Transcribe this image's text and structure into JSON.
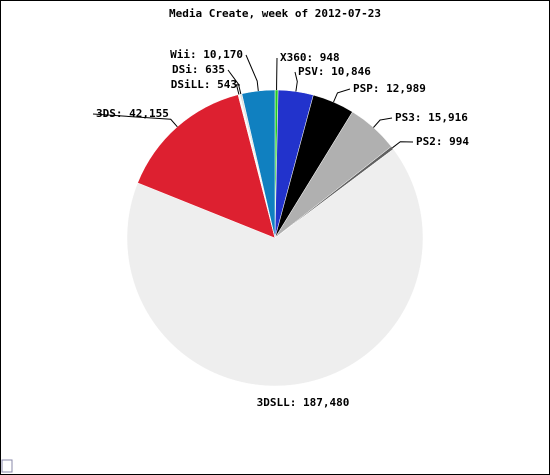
{
  "chart_data": {
    "type": "pie",
    "title": "Media Create, week of 2012-07-23",
    "labels": [
      "X360: 948",
      "PSV: 10,846",
      "PSP: 12,989",
      "PS3: 15,916",
      "PS2: 994",
      "3DSLL: 187,480",
      "3DS: 42,155",
      "DSiLL: 543",
      "DSi: 635",
      "Wii: 10,170"
    ],
    "values": [
      948,
      10846,
      12989,
      15916,
      994,
      187480,
      42155,
      543,
      635,
      10170
    ],
    "colors": [
      "#22cc22",
      "#2233cc",
      "#000000",
      "#b0b0b0",
      "#606060",
      "#eeeeee",
      "#dd2030",
      "#f8f8f8",
      "#e0e0e0",
      "#1080c0"
    ]
  }
}
